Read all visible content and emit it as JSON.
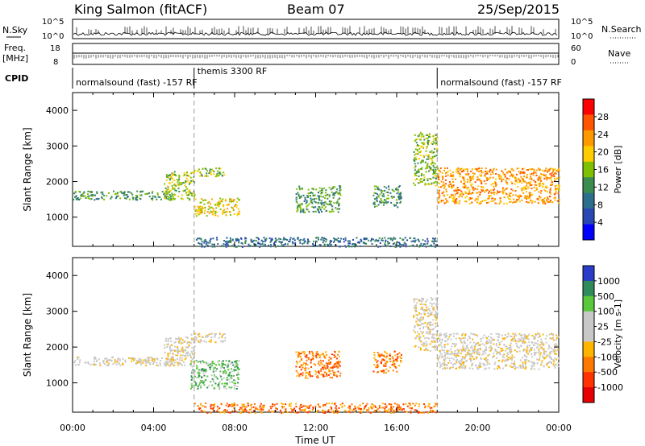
{
  "header": {
    "station": "King Salmon (fitACF)",
    "beam": "Beam 07",
    "date": "25/Sep/2015"
  },
  "top_panels": {
    "nsky_label": "N.Sky",
    "nsky_ticks": [
      "10^5",
      "10^0"
    ],
    "nsearch_label": "N.Search",
    "nsearch_ticks": [
      "10^5",
      "10^0"
    ],
    "freq_label": "Freq.",
    "freq_unit": "[MHz]",
    "freq_ticks": [
      "18",
      "8"
    ],
    "nave_label": "Nave",
    "nave_ticks": [
      "60",
      "0"
    ],
    "cpid_label": "CPID",
    "cpid_segments": [
      {
        "label": "normalsound (fast) -157 RF",
        "start": 0,
        "end": 6
      },
      {
        "label": "themis 3300 RF",
        "start": 6,
        "end": 18
      },
      {
        "label": "normalsound (fast) -157 RF",
        "start": 18,
        "end": 24
      }
    ]
  },
  "chart_data": [
    {
      "type": "heatmap",
      "quantity": "Power",
      "ylabel": "Slant Range [km]",
      "colorbar_label": "Power [dB]",
      "colorbar_ticks": [
        "28",
        "24",
        "20",
        "16",
        "12",
        "8",
        "4"
      ],
      "colorbar_colors": [
        "#ff0000",
        "#ff5500",
        "#ff9900",
        "#ffcc00",
        "#7fc000",
        "#3c8c50",
        "#2d6e8c",
        "#2846b4",
        "#0000ff"
      ],
      "ylim": [
        180,
        4500
      ],
      "yticks": [
        "1000",
        "2000",
        "3000",
        "4000"
      ],
      "xlim": [
        0,
        24
      ],
      "regions": [
        {
          "t0": 0.0,
          "t1": 5.0,
          "r0": 1500,
          "r1": 1750,
          "level": 3
        },
        {
          "t0": 4.5,
          "t1": 6.0,
          "r0": 1500,
          "r1": 2300,
          "level": 4
        },
        {
          "t0": 5.8,
          "t1": 7.5,
          "r0": 2150,
          "r1": 2400,
          "level": 4
        },
        {
          "t0": 6.0,
          "t1": 8.2,
          "r0": 1050,
          "r1": 1550,
          "level": 5
        },
        {
          "t0": 11.0,
          "t1": 13.2,
          "r0": 1150,
          "r1": 1900,
          "level": 3
        },
        {
          "t0": 14.8,
          "t1": 16.2,
          "r0": 1300,
          "r1": 1900,
          "level": 3
        },
        {
          "t0": 16.8,
          "t1": 18.0,
          "r0": 1900,
          "r1": 3400,
          "level": 4
        },
        {
          "t0": 18.0,
          "t1": 24.0,
          "r0": 1400,
          "r1": 2400,
          "level": 6
        },
        {
          "t0": 6.0,
          "t1": 18.0,
          "r0": 180,
          "r1": 450,
          "level": 2
        }
      ]
    },
    {
      "type": "heatmap",
      "quantity": "Velocity",
      "ylabel": "Slant Range [km]",
      "colorbar_label": "Velocity [m s-1]",
      "colorbar_ticks": [
        "1000",
        "500",
        "100",
        "25",
        "-25",
        "-100",
        "-500",
        "-1000"
      ],
      "colorbar_colors": [
        "#2a3cc8",
        "#2f8c5a",
        "#5ac83c",
        "#c8c8c8",
        "#c8c8c8",
        "#ffb400",
        "#ff7800",
        "#ff3200",
        "#e60000"
      ],
      "ylim": [
        180,
        4500
      ],
      "yticks": [
        "1000",
        "2000",
        "3000",
        "4000"
      ],
      "xlim": [
        0,
        24
      ],
      "xlabel": "Time UT",
      "xticks": [
        "00:00",
        "04:00",
        "08:00",
        "12:00",
        "16:00",
        "20:00",
        "00:00"
      ],
      "regions": [
        {
          "t0": 0.0,
          "t1": 5.0,
          "r0": 1500,
          "r1": 1750,
          "level": 4
        },
        {
          "t0": 4.5,
          "t1": 6.0,
          "r0": 1500,
          "r1": 2300,
          "level": 4
        },
        {
          "t0": 5.8,
          "t1": 7.5,
          "r0": 2150,
          "r1": 2400,
          "level": 4
        },
        {
          "t0": 5.8,
          "t1": 8.2,
          "r0": 850,
          "r1": 1650,
          "level": 6
        },
        {
          "t0": 11.0,
          "t1": 13.2,
          "r0": 1150,
          "r1": 1900,
          "level": 2
        },
        {
          "t0": 14.8,
          "t1": 16.2,
          "r0": 1300,
          "r1": 1900,
          "level": 2
        },
        {
          "t0": 16.8,
          "t1": 18.0,
          "r0": 1900,
          "r1": 3400,
          "level": 4
        },
        {
          "t0": 18.0,
          "t1": 24.0,
          "r0": 1400,
          "r1": 2400,
          "level": 4
        },
        {
          "t0": 6.0,
          "t1": 18.0,
          "r0": 180,
          "r1": 450,
          "level": 2
        }
      ]
    }
  ]
}
